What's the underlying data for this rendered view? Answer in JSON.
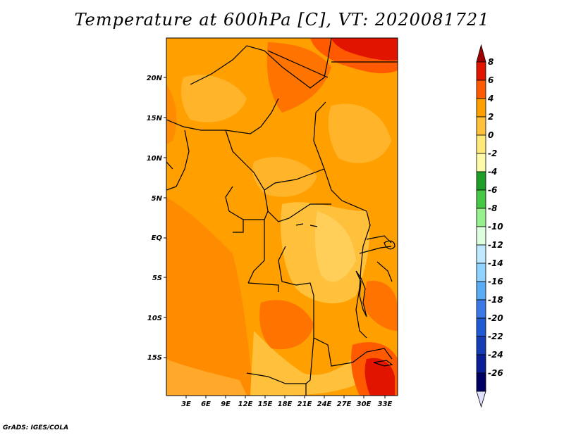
{
  "title": "Temperature at 600hPa [C], VT: 2020081721",
  "credit": "GrADS: IGES/COLA",
  "map": {
    "lon_ticks": [
      "3E",
      "6E",
      "9E",
      "12E",
      "15E",
      "18E",
      "21E",
      "24E",
      "27E",
      "30E",
      "33E"
    ],
    "lat_ticks": [
      "20N",
      "15N",
      "10N",
      "5N",
      "EQ",
      "5S",
      "10S",
      "15S"
    ]
  },
  "colorbar": {
    "levels": [
      "8",
      "6",
      "4",
      "2",
      "0",
      "-2",
      "-4",
      "-6",
      "-8",
      "-10",
      "-12",
      "-14",
      "-16",
      "-18",
      "-20",
      "-22",
      "-24",
      "-26"
    ],
    "colors": [
      "#a00000",
      "#e11400",
      "#ff5a00",
      "#ff9f00",
      "#ffc13c",
      "#ffe978",
      "#fffaaa",
      "#1e9e28",
      "#46c846",
      "#96f08c",
      "#ddffdd",
      "#bde8ff",
      "#8fd2ff",
      "#5aacf4",
      "#3c78e6",
      "#1e5ad2",
      "#143cb4",
      "#0a1e96",
      "#000064",
      "#e0e0ff"
    ]
  }
}
